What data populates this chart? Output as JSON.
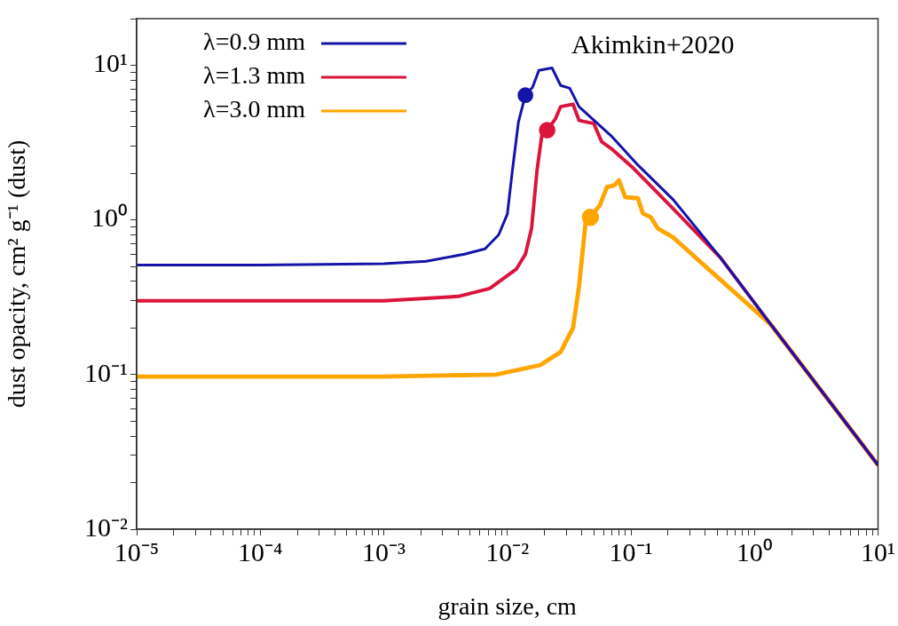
{
  "chart_data": {
    "type": "line",
    "xlabel": "grain size, cm",
    "ylabel": "dust opacity, cm² g⁻¹ (dust)",
    "annotations": [
      "Akimkin+2020"
    ],
    "log": "xy",
    "grid": false,
    "legend": "top left",
    "marker": "none",
    "xlim": [
      1e-05,
      10
    ],
    "ylim": [
      0.01,
      20
    ],
    "xticks": [
      {
        "value": 1e-05,
        "label": "10⁻⁵"
      },
      {
        "value": 2e-05,
        "label": null
      },
      {
        "value": 3e-05,
        "label": null
      },
      {
        "value": 4e-05,
        "label": null
      },
      {
        "value": 5e-05,
        "label": null
      },
      {
        "value": 6e-05,
        "label": null
      },
      {
        "value": 7e-05,
        "label": null
      },
      {
        "value": 8e-05,
        "label": null
      },
      {
        "value": 9e-05,
        "label": null
      },
      {
        "value": 0.0001,
        "label": "10⁻⁴"
      },
      {
        "value": 0.0002,
        "label": null
      },
      {
        "value": 0.0003,
        "label": null
      },
      {
        "value": 0.0004,
        "label": null
      },
      {
        "value": 0.0005,
        "label": null
      },
      {
        "value": 0.0006,
        "label": null
      },
      {
        "value": 0.0007,
        "label": null
      },
      {
        "value": 0.0008,
        "label": null
      },
      {
        "value": 0.0009,
        "label": null
      },
      {
        "value": 0.001,
        "label": "10⁻³"
      },
      {
        "value": 0.002,
        "label": null
      },
      {
        "value": 0.003,
        "label": null
      },
      {
        "value": 0.004,
        "label": null
      },
      {
        "value": 0.005,
        "label": null
      },
      {
        "value": 0.006,
        "label": null
      },
      {
        "value": 0.007,
        "label": null
      },
      {
        "value": 0.008,
        "label": null
      },
      {
        "value": 0.009,
        "label": null
      },
      {
        "value": 0.01,
        "label": "10⁻²"
      },
      {
        "value": 0.02,
        "label": null
      },
      {
        "value": 0.03,
        "label": null
      },
      {
        "value": 0.04,
        "label": null
      },
      {
        "value": 0.05,
        "label": null
      },
      {
        "value": 0.06,
        "label": null
      },
      {
        "value": 0.07,
        "label": null
      },
      {
        "value": 0.08,
        "label": null
      },
      {
        "value": 0.09,
        "label": null
      },
      {
        "value": 0.1,
        "label": "10⁻¹"
      },
      {
        "value": 0.2,
        "label": null
      },
      {
        "value": 0.3,
        "label": null
      },
      {
        "value": 0.4,
        "label": null
      },
      {
        "value": 0.5,
        "label": null
      },
      {
        "value": 0.6,
        "label": null
      },
      {
        "value": 0.7,
        "label": null
      },
      {
        "value": 0.8,
        "label": null
      },
      {
        "value": 0.9,
        "label": null
      },
      {
        "value": 1,
        "label": "10⁰"
      },
      {
        "value": 2,
        "label": null
      },
      {
        "value": 3,
        "label": null
      },
      {
        "value": 4,
        "label": null
      },
      {
        "value": 5,
        "label": null
      },
      {
        "value": 6,
        "label": null
      },
      {
        "value": 7,
        "label": null
      },
      {
        "value": 8,
        "label": null
      },
      {
        "value": 9,
        "label": null
      },
      {
        "value": 10,
        "label": "10¹"
      }
    ],
    "yticks": [
      {
        "value": 0.01,
        "label": "10⁻²"
      },
      {
        "value": 0.02,
        "label": null
      },
      {
        "value": 0.03,
        "label": null
      },
      {
        "value": 0.04,
        "label": null
      },
      {
        "value": 0.05,
        "label": null
      },
      {
        "value": 0.06,
        "label": null
      },
      {
        "value": 0.07,
        "label": null
      },
      {
        "value": 0.08,
        "label": null
      },
      {
        "value": 0.09,
        "label": null
      },
      {
        "value": 0.1,
        "label": "10⁻¹"
      },
      {
        "value": 0.2,
        "label": null
      },
      {
        "value": 0.3,
        "label": null
      },
      {
        "value": 0.4,
        "label": null
      },
      {
        "value": 0.5,
        "label": null
      },
      {
        "value": 0.6,
        "label": null
      },
      {
        "value": 0.7,
        "label": null
      },
      {
        "value": 0.8,
        "label": null
      },
      {
        "value": 0.9,
        "label": null
      },
      {
        "value": 1,
        "label": "10⁰"
      },
      {
        "value": 2,
        "label": null
      },
      {
        "value": 3,
        "label": null
      },
      {
        "value": 4,
        "label": null
      },
      {
        "value": 5,
        "label": null
      },
      {
        "value": 6,
        "label": null
      },
      {
        "value": 7,
        "label": null
      },
      {
        "value": 8,
        "label": null
      },
      {
        "value": 9,
        "label": null
      },
      {
        "value": 10,
        "label": "10¹"
      },
      {
        "value": 20,
        "label": null
      }
    ],
    "series": [
      {
        "name": "λ=0.9 mm",
        "color": "#1414a8",
        "x": [
          1e-05,
          0.0001,
          0.001,
          0.0022,
          0.0045,
          0.0066,
          0.0085,
          0.01,
          0.011,
          0.0123,
          0.014,
          0.016,
          0.018,
          0.023,
          0.027,
          0.032,
          0.038,
          0.069,
          0.114,
          0.22,
          0.53,
          1.36,
          10
        ],
        "values": [
          0.51,
          0.51,
          0.52,
          0.54,
          0.6,
          0.65,
          0.8,
          1.09,
          2.1,
          4.3,
          6.4,
          7.2,
          9.25,
          9.6,
          7.4,
          7.1,
          5.4,
          3.5,
          2.26,
          1.35,
          0.57,
          0.21,
          0.026
        ]
      },
      {
        "name": "λ=1.3 mm",
        "color": "#dc143c",
        "x": [
          1e-05,
          0.001,
          0.004,
          0.0072,
          0.0118,
          0.014,
          0.0157,
          0.0174,
          0.019,
          0.021,
          0.0245,
          0.027,
          0.034,
          0.038,
          0.05,
          0.058,
          0.069,
          0.102,
          0.22,
          0.53,
          1.36,
          10
        ],
        "values": [
          0.3,
          0.3,
          0.32,
          0.36,
          0.48,
          0.6,
          0.88,
          2.1,
          3.5,
          3.8,
          4.5,
          5.4,
          5.6,
          4.4,
          4.2,
          3.2,
          2.9,
          2.2,
          1.18,
          0.57,
          0.21,
          0.026
        ]
      },
      {
        "name": "λ=3.0 mm",
        "color": "#ffa500",
        "x": [
          1e-05,
          0.001,
          0.0081,
          0.0184,
          0.027,
          0.034,
          0.038,
          0.043,
          0.047,
          0.056,
          0.064,
          0.073,
          0.08,
          0.09,
          0.114,
          0.125,
          0.145,
          0.165,
          0.22,
          0.38,
          1.36,
          10
        ],
        "values": [
          0.097,
          0.097,
          0.1,
          0.115,
          0.14,
          0.2,
          0.37,
          0.96,
          1.04,
          1.24,
          1.63,
          1.67,
          1.8,
          1.4,
          1.38,
          1.1,
          1.04,
          0.88,
          0.77,
          0.52,
          0.21,
          0.026
        ]
      },
      {
        "type": "scatter",
        "marker": "circle",
        "color": "#1414a8",
        "x": [
          0.014
        ],
        "values": [
          6.4
        ]
      },
      {
        "type": "scatter",
        "marker": "circle",
        "color": "#dc143c",
        "x": [
          0.021
        ],
        "values": [
          3.8
        ]
      },
      {
        "type": "scatter",
        "marker": "circle",
        "color": "#ffa500",
        "x": [
          0.047
        ],
        "values": [
          1.04
        ]
      }
    ]
  }
}
